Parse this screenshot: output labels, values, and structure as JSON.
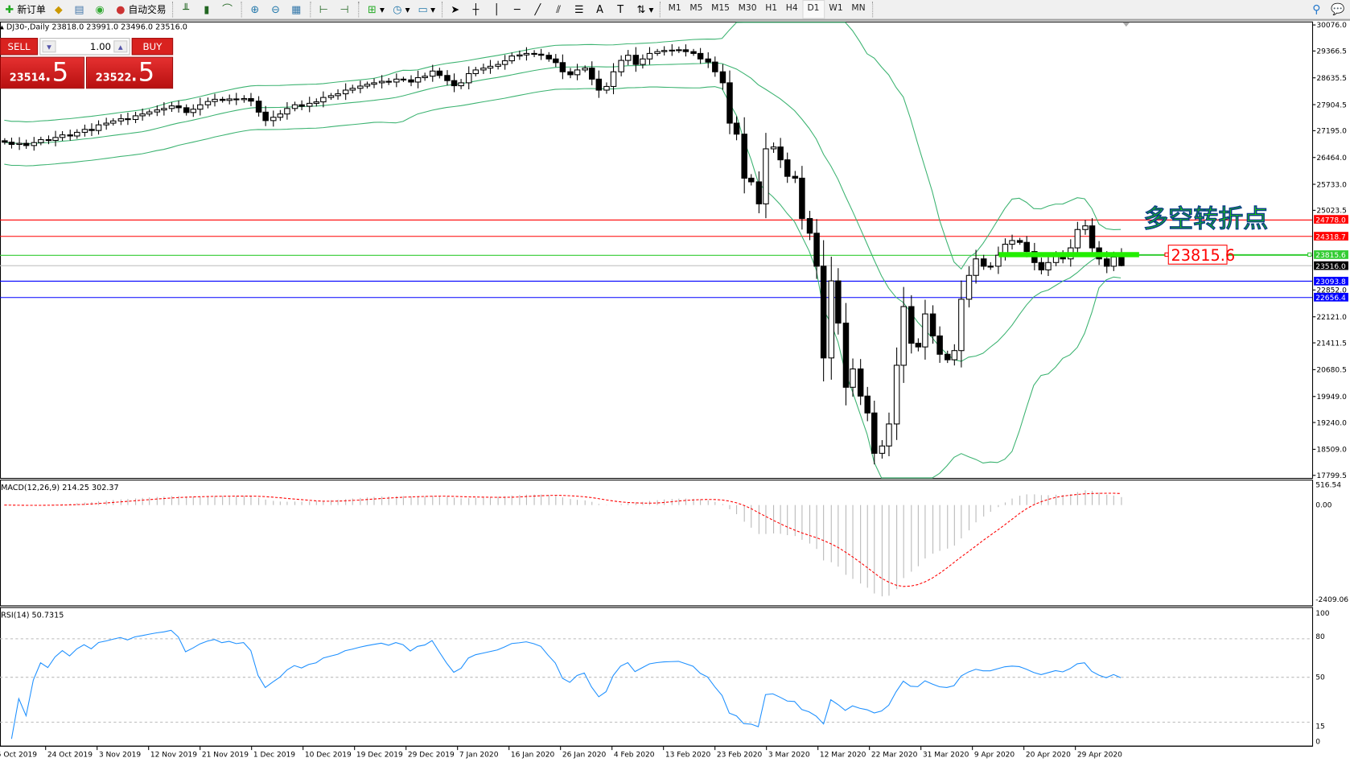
{
  "toolbar": {
    "new_order": "新订单",
    "auto_trading": "自动交易",
    "timeframes": [
      "M1",
      "M5",
      "M15",
      "M30",
      "H1",
      "H4",
      "D1",
      "W1",
      "MN"
    ],
    "active_timeframe": "D1"
  },
  "chart": {
    "symbol_line": "DJ30-,Daily  23818.0 23991.0 23496.0 23516.0",
    "annotation": "多空转折点",
    "annotation_color": "#22dd00",
    "marked_price": "23815.6"
  },
  "trade_panel": {
    "sell_label": "SELL",
    "buy_label": "BUY",
    "lot": "1.00",
    "bid_main": "23514",
    "bid_frac": ".5",
    "ask_main": "23522",
    "ask_frac": ".5"
  },
  "macd": {
    "label": "MACD(12,26,9) 214.25 302.37",
    "ticks": [
      "516.54",
      "0.00",
      "-2409.06"
    ]
  },
  "rsi": {
    "label": "RSI(14) 50.7315",
    "ticks": [
      "100",
      "80",
      "50",
      "15",
      "0"
    ]
  },
  "chart_data": {
    "type": "candlestick",
    "price_ticks": [
      "30076.0",
      "29366.5",
      "28635.5",
      "27904.5",
      "27195.0",
      "26464.0",
      "25733.0",
      "25023.5",
      "22852.0",
      "22121.0",
      "21411.5",
      "20680.5",
      "19949.0",
      "19240.0",
      "18509.0",
      "17799.5"
    ],
    "ylim": [
      17799.5,
      30076.0
    ],
    "date_labels": [
      "5 Oct 2019",
      "24 Oct 2019",
      "3 Nov 2019",
      "12 Nov 2019",
      "21 Nov 2019",
      "1 Dec 2019",
      "10 Dec 2019",
      "19 Dec 2019",
      "29 Dec 2019",
      "7 Jan 2020",
      "16 Jan 2020",
      "26 Jan 2020",
      "4 Feb 2020",
      "13 Feb 2020",
      "23 Feb 2020",
      "3 Mar 2020",
      "12 Mar 2020",
      "22 Mar 2020",
      "31 Mar 2020",
      "9 Apr 2020",
      "20 Apr 2020",
      "29 Apr 2020"
    ],
    "closes": [
      26880,
      26820,
      26850,
      26790,
      26870,
      26950,
      26930,
      27010,
      27080,
      27050,
      27150,
      27230,
      27200,
      27353,
      27400,
      27460,
      27520,
      27500,
      27600,
      27650,
      27705,
      27760,
      27800,
      27870,
      27820,
      27690,
      27780,
      27900,
      27990,
      28050,
      28020,
      28060,
      28040,
      28070,
      28000,
      27700,
      27470,
      27560,
      27650,
      27800,
      27900,
      27860,
      27940,
      27980,
      28100,
      28150,
      28200,
      28300,
      28350,
      28410,
      28460,
      28500,
      28540,
      28520,
      28600,
      28580,
      28520,
      28640,
      28680,
      28820,
      28700,
      28560,
      28420,
      28500,
      28750,
      28850,
      28900,
      28950,
      29000,
      29100,
      29230,
      29260,
      29300,
      29280,
      29250,
      29150,
      29050,
      28800,
      28720,
      28850,
      28900,
      28600,
      28300,
      28400,
      28800,
      29110,
      29250,
      29000,
      29150,
      29300,
      29350,
      29380,
      29390,
      29400,
      29350,
      29300,
      29150,
      29065,
      28800,
      28500,
      27400,
      27100,
      25900,
      25800,
      25200,
      26700,
      26750,
      26400,
      25950,
      25900,
      24800,
      24400,
      23500,
      21000,
      23100,
      21950,
      20200,
      20700,
      19960,
      19500,
      18400,
      18600,
      19200,
      20800,
      22400,
      21400,
      21300,
      22200,
      21600,
      21100,
      20950,
      21200,
      22600,
      23250,
      23700,
      23500,
      23500,
      23800,
      24100,
      24200,
      24150,
      23900,
      23600,
      23400,
      23600,
      23800,
      23700,
      24000,
      24500,
      24600,
      24000,
      23700,
      23500,
      23750,
      23516
    ],
    "last_bar": {
      "open": 23818.0,
      "high": 23991.0,
      "low": 23496.0,
      "close": 23516.0
    },
    "indicators": [
      "Bollinger Bands (20,2)",
      "MACD(12,26,9)",
      "RSI(14)"
    ],
    "horizontal_lines": [
      {
        "price": "24778.0",
        "color": "#ff0000"
      },
      {
        "price": "24318.7",
        "color": "#ff0000"
      },
      {
        "price": "23815.6",
        "color": "#33cc33"
      },
      {
        "price": "23516.0",
        "color": "#000000"
      },
      {
        "price": "23093.8",
        "color": "#0000ff"
      },
      {
        "price": "22656.4",
        "color": "#0000ff"
      }
    ],
    "band_color": "#3cb371",
    "macd_signal_color": "#ff0000",
    "rsi_color": "#1e90ff",
    "rsi_levels": [
      80,
      50,
      15
    ]
  }
}
